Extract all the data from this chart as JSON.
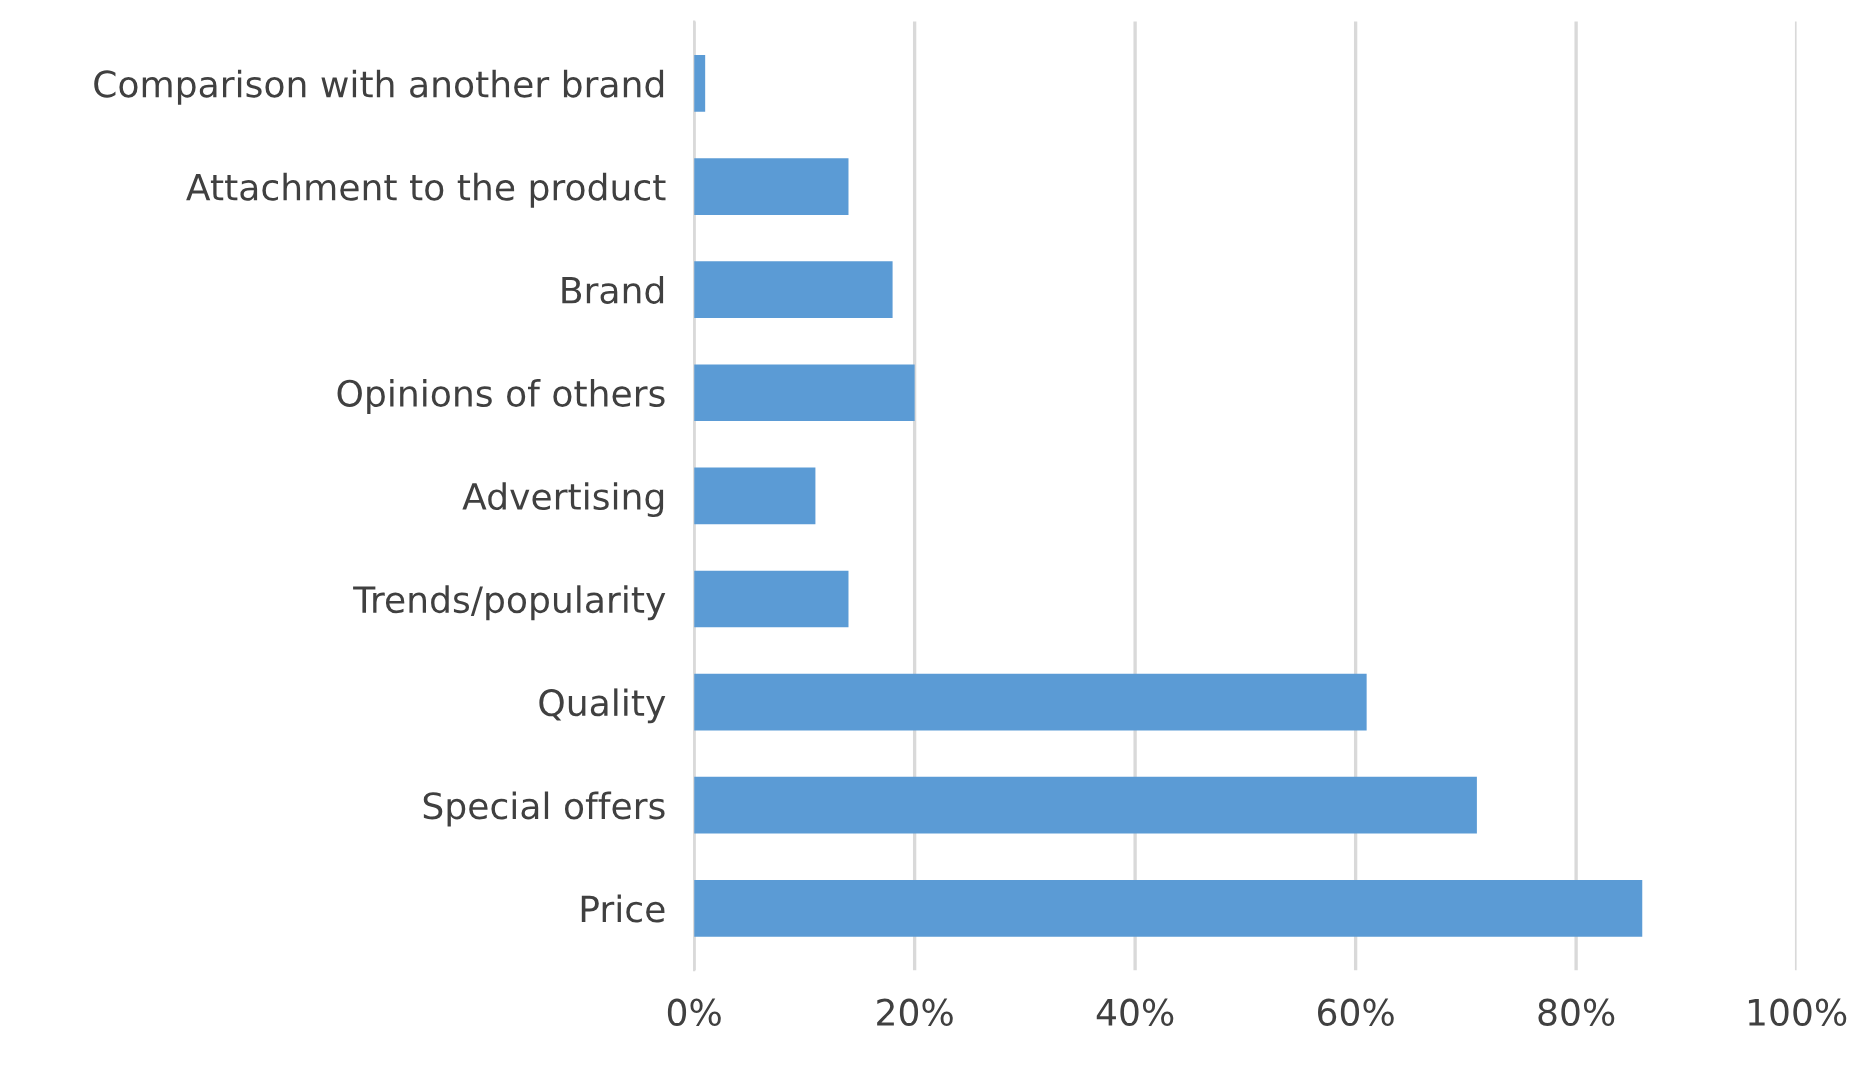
{
  "chart_data": {
    "type": "bar",
    "orientation": "horizontal",
    "categories": [
      "Comparison with another brand",
      "Attachment to the product",
      "Brand",
      "Opinions of others",
      "Advertising",
      "Trends/popularity",
      "Quality",
      "Special offers",
      "Price"
    ],
    "values": [
      1,
      14,
      18,
      20,
      11,
      14,
      61,
      71,
      86
    ],
    "color": "#5b9bd5",
    "xlim": [
      0,
      100
    ],
    "xticks": [
      {
        "value": 0,
        "label": "0%"
      },
      {
        "value": 20,
        "label": "20%"
      },
      {
        "value": 40,
        "label": "40%"
      },
      {
        "value": 60,
        "label": "60%"
      },
      {
        "value": 80,
        "label": "80%"
      },
      {
        "value": 100,
        "label": "100%"
      }
    ],
    "grid": "x",
    "legend": false
  }
}
